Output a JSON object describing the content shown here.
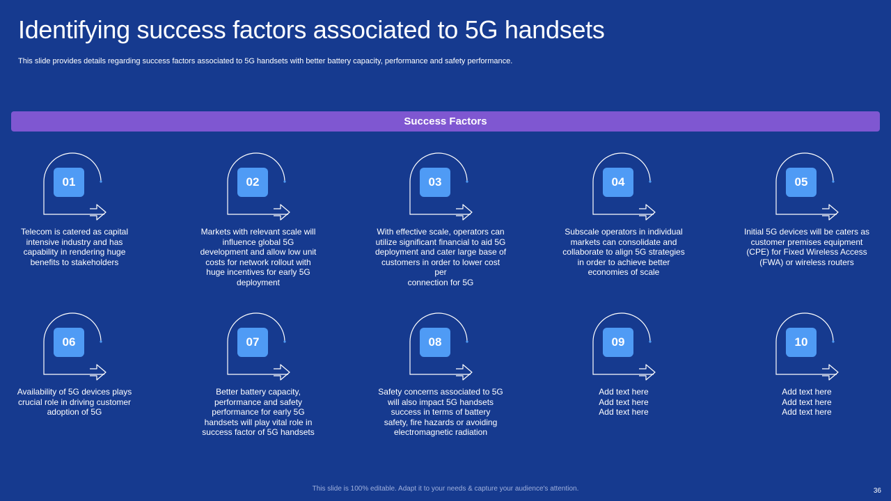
{
  "header": {
    "title": "Identifying success factors associated to 5G handsets",
    "subtitle": "This slide provides details regarding success factors associated to 5G handsets with better battery capacity, performance and safety performance."
  },
  "banner": {
    "label": "Success Factors"
  },
  "items": [
    {
      "number": "01",
      "text": "Telecom is catered as capital\nintensive industry and has\ncapability in rendering huge\nbenefits to stakeholders"
    },
    {
      "number": "02",
      "text": "Markets with relevant scale will\ninfluence global 5G\ndevelopment  and allow low unit\ncosts for network rollout  with\nhuge incentives for early 5G\ndeployment"
    },
    {
      "number": "03",
      "text": "With effective scale, operators can\nutilize significant financial to aid 5G\ndeployment and cater large base of\ncustomers in order to lower cost per\nconnection for 5G"
    },
    {
      "number": "04",
      "text": "Subscale operators in individual\nmarkets can consolidate and\ncollaborate to align 5G strategies\nin order to achieve better\neconomies of scale"
    },
    {
      "number": "05",
      "text": "Initial 5G devices will be caters as\ncustomer premises equipment\n(CPE) for Fixed Wireless Access\n(FWA) or wireless routers"
    },
    {
      "number": "06",
      "text": "Availability of 5G devices plays\ncrucial role in driving customer\nadoption of 5G"
    },
    {
      "number": "07",
      "text": "Better battery capacity,\nperformance and safety\nperformance for early 5G\nhandsets will play vital role in\nsuccess factor of 5G handsets"
    },
    {
      "number": "08",
      "text": "Safety concerns associated to 5G\nwill also impact 5G handsets\nsuccess in terms of battery\nsafety, fire hazards or avoiding\nelectromagnetic radiation"
    },
    {
      "number": "09",
      "text": "Add text here\nAdd text here\nAdd text here"
    },
    {
      "number": "10",
      "text": "Add text here\nAdd text here\nAdd text here"
    }
  ],
  "footer": {
    "note": "This slide is 100% editable. Adapt it to your needs & capture your audience's attention.",
    "page_number": "36"
  },
  "colors": {
    "background": "#163a8f",
    "banner": "#7f57d1",
    "number_box": "#4f9bf5"
  }
}
